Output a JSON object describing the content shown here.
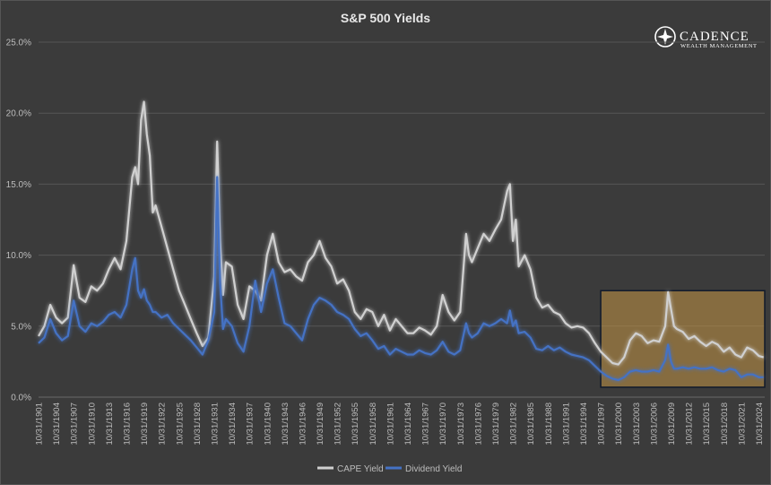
{
  "chart_data": {
    "type": "line",
    "title": "S&P 500 Yields",
    "ylim": [
      0,
      25
    ],
    "y_ticks": [
      "25.0%",
      "20.0%",
      "15.0%",
      "10.0%",
      "5.0%",
      "0.0%"
    ],
    "y_tick_values": [
      25,
      20,
      15,
      10,
      5,
      0
    ],
    "x_range": [
      1901,
      2025
    ],
    "x_tick_labels": [
      "10/31/1901",
      "10/31/1904",
      "10/31/1907",
      "10/31/1910",
      "10/31/1913",
      "10/31/1916",
      "10/31/1919",
      "10/31/1922",
      "10/31/1925",
      "10/31/1928",
      "10/31/1931",
      "10/31/1934",
      "10/31/1937",
      "10/31/1940",
      "10/31/1943",
      "10/31/1946",
      "10/31/1949",
      "10/31/1952",
      "10/31/1955",
      "10/31/1958",
      "10/31/1961",
      "10/31/1964",
      "10/31/1967",
      "10/31/1970",
      "10/31/1973",
      "10/31/1976",
      "10/31/1979",
      "10/31/1982",
      "10/31/1985",
      "10/31/1988",
      "10/31/1991",
      "10/31/1994",
      "10/31/1997",
      "10/31/2000",
      "10/31/2003",
      "10/31/2006",
      "10/31/2009",
      "10/31/2012",
      "10/31/2015",
      "10/31/2018",
      "10/31/2021",
      "10/31/2024"
    ],
    "x_tick_years": [
      1901,
      1904,
      1907,
      1910,
      1913,
      1916,
      1919,
      1922,
      1925,
      1928,
      1931,
      1934,
      1937,
      1940,
      1943,
      1946,
      1949,
      1952,
      1955,
      1958,
      1961,
      1964,
      1967,
      1970,
      1973,
      1976,
      1979,
      1982,
      1985,
      1988,
      1991,
      1994,
      1997,
      2000,
      2003,
      2006,
      2009,
      2012,
      2015,
      2018,
      2021,
      2024
    ],
    "highlight_range": [
      1997,
      2025
    ],
    "highlight_ylim": [
      0.7,
      7.5
    ],
    "grid": "horizontal",
    "legend_position": "bottom",
    "series": [
      {
        "name": "CAPE Yield",
        "color": "#d0d0d0",
        "x": [
          1901,
          1902,
          1903,
          1904,
          1905,
          1906,
          1907,
          1908,
          1909,
          1910,
          1911,
          1912,
          1913,
          1914,
          1915,
          1916,
          1917,
          1917.5,
          1918,
          1918.5,
          1919,
          1919.5,
          1920,
          1920.5,
          1921,
          1922,
          1923,
          1924,
          1925,
          1926,
          1927,
          1928,
          1929,
          1930,
          1931,
          1931.5,
          1932,
          1932.5,
          1933,
          1934,
          1935,
          1936,
          1937,
          1938,
          1939,
          1940,
          1941,
          1942,
          1943,
          1944,
          1945,
          1946,
          1947,
          1948,
          1949,
          1950,
          1951,
          1952,
          1953,
          1954,
          1955,
          1956,
          1957,
          1958,
          1959,
          1960,
          1961,
          1962,
          1963,
          1964,
          1965,
          1966,
          1967,
          1968,
          1969,
          1970,
          1971,
          1972,
          1973,
          1974,
          1974.5,
          1975,
          1976,
          1977,
          1978,
          1979,
          1980,
          1981,
          1981.5,
          1982,
          1982.5,
          1983,
          1984,
          1985,
          1986,
          1987,
          1988,
          1989,
          1990,
          1991,
          1992,
          1993,
          1994,
          1995,
          1996,
          1997,
          1998,
          1999,
          2000,
          2001,
          2002,
          2003,
          2004,
          2005,
          2006,
          2007,
          2008,
          2008.5,
          2009,
          2009.5,
          2010,
          2011,
          2012,
          2013,
          2014,
          2015,
          2016,
          2017,
          2018,
          2019,
          2020,
          2021,
          2022,
          2023,
          2024,
          2024.8
        ],
        "values": [
          4.3,
          5.0,
          6.5,
          5.6,
          5.2,
          5.6,
          9.3,
          7.0,
          6.7,
          7.8,
          7.5,
          8.0,
          9.0,
          9.8,
          9.0,
          11.0,
          15.5,
          16.2,
          15.0,
          19.5,
          20.8,
          18.5,
          17.0,
          13.0,
          13.5,
          12.0,
          10.5,
          9.0,
          7.5,
          6.5,
          5.5,
          4.5,
          3.6,
          4.2,
          8.5,
          18.0,
          11.0,
          7.2,
          9.5,
          9.2,
          6.5,
          5.5,
          7.8,
          7.5,
          6.8,
          10.0,
          11.5,
          9.5,
          8.8,
          9.0,
          8.5,
          8.2,
          9.5,
          10.0,
          11.0,
          9.8,
          9.2,
          8.0,
          8.3,
          7.5,
          6.0,
          5.5,
          6.2,
          6.0,
          5.0,
          5.8,
          4.7,
          5.5,
          5.0,
          4.5,
          4.5,
          4.9,
          4.7,
          4.4,
          5.0,
          7.2,
          6.0,
          5.4,
          6.0,
          11.5,
          10.0,
          9.5,
          10.5,
          11.5,
          11.0,
          11.8,
          12.5,
          14.5,
          15.0,
          11.0,
          12.5,
          9.2,
          10.0,
          9.0,
          7.0,
          6.3,
          6.5,
          6.0,
          5.8,
          5.2,
          4.9,
          5.0,
          4.9,
          4.5,
          3.8,
          3.2,
          2.8,
          2.4,
          2.3,
          2.8,
          4.0,
          4.5,
          4.3,
          3.8,
          4.0,
          3.9,
          5.0,
          7.4,
          6.2,
          5.0,
          4.8,
          4.6,
          4.1,
          4.3,
          3.9,
          3.6,
          3.9,
          3.7,
          3.2,
          3.5,
          3.0,
          2.8,
          3.5,
          3.3,
          2.9,
          2.8
        ]
      },
      {
        "name": "Dividend Yield",
        "color": "#4472c4",
        "x": [
          1901,
          1902,
          1903,
          1904,
          1905,
          1906,
          1907,
          1908,
          1909,
          1910,
          1911,
          1912,
          1913,
          1914,
          1915,
          1916,
          1917,
          1917.5,
          1918,
          1918.5,
          1919,
          1919.5,
          1920,
          1920.5,
          1921,
          1922,
          1923,
          1924,
          1925,
          1926,
          1927,
          1928,
          1929,
          1930,
          1931,
          1931.5,
          1932,
          1932.5,
          1933,
          1934,
          1935,
          1936,
          1937,
          1938,
          1939,
          1940,
          1941,
          1942,
          1943,
          1944,
          1945,
          1946,
          1947,
          1948,
          1949,
          1950,
          1951,
          1952,
          1953,
          1954,
          1955,
          1956,
          1957,
          1958,
          1959,
          1960,
          1961,
          1962,
          1963,
          1964,
          1965,
          1966,
          1967,
          1968,
          1969,
          1970,
          1971,
          1972,
          1973,
          1974,
          1974.5,
          1975,
          1976,
          1977,
          1978,
          1979,
          1980,
          1981,
          1981.5,
          1982,
          1982.5,
          1983,
          1984,
          1985,
          1986,
          1987,
          1988,
          1989,
          1990,
          1991,
          1992,
          1993,
          1994,
          1995,
          1996,
          1997,
          1998,
          1999,
          2000,
          2001,
          2002,
          2003,
          2004,
          2005,
          2006,
          2007,
          2008,
          2008.5,
          2009,
          2009.5,
          2010,
          2011,
          2012,
          2013,
          2014,
          2015,
          2016,
          2017,
          2018,
          2019,
          2020,
          2021,
          2022,
          2023,
          2024,
          2024.8
        ],
        "values": [
          3.8,
          4.2,
          5.5,
          4.5,
          4.0,
          4.3,
          6.8,
          5.0,
          4.6,
          5.2,
          5.0,
          5.3,
          5.8,
          6.0,
          5.6,
          6.5,
          9.0,
          9.8,
          7.5,
          7.0,
          7.6,
          6.8,
          6.5,
          6.0,
          6.0,
          5.6,
          5.8,
          5.2,
          4.8,
          4.4,
          4.0,
          3.5,
          3.0,
          4.0,
          6.0,
          15.5,
          8.0,
          4.8,
          5.5,
          5.0,
          3.8,
          3.2,
          5.0,
          8.2,
          6.0,
          8.0,
          9.0,
          7.0,
          5.2,
          5.0,
          4.5,
          4.0,
          5.5,
          6.5,
          7.0,
          6.8,
          6.5,
          6.0,
          5.8,
          5.5,
          4.8,
          4.3,
          4.5,
          4.0,
          3.4,
          3.6,
          3.0,
          3.4,
          3.2,
          3.0,
          3.0,
          3.3,
          3.1,
          3.0,
          3.3,
          3.9,
          3.2,
          3.0,
          3.3,
          5.2,
          4.5,
          4.2,
          4.5,
          5.2,
          5.0,
          5.2,
          5.5,
          5.2,
          6.1,
          5.0,
          5.4,
          4.5,
          4.6,
          4.2,
          3.4,
          3.3,
          3.6,
          3.3,
          3.5,
          3.2,
          3.0,
          2.9,
          2.8,
          2.6,
          2.2,
          1.8,
          1.5,
          1.3,
          1.2,
          1.4,
          1.8,
          1.9,
          1.8,
          1.8,
          1.9,
          1.8,
          2.6,
          3.7,
          2.5,
          2.0,
          2.0,
          2.1,
          2.0,
          2.1,
          2.0,
          2.0,
          2.1,
          1.9,
          1.8,
          2.0,
          1.9,
          1.4,
          1.6,
          1.6,
          1.4,
          1.4
        ]
      }
    ]
  },
  "logo": {
    "name": "CADENCE",
    "tagline": "WEALTH MANAGEMENT"
  }
}
